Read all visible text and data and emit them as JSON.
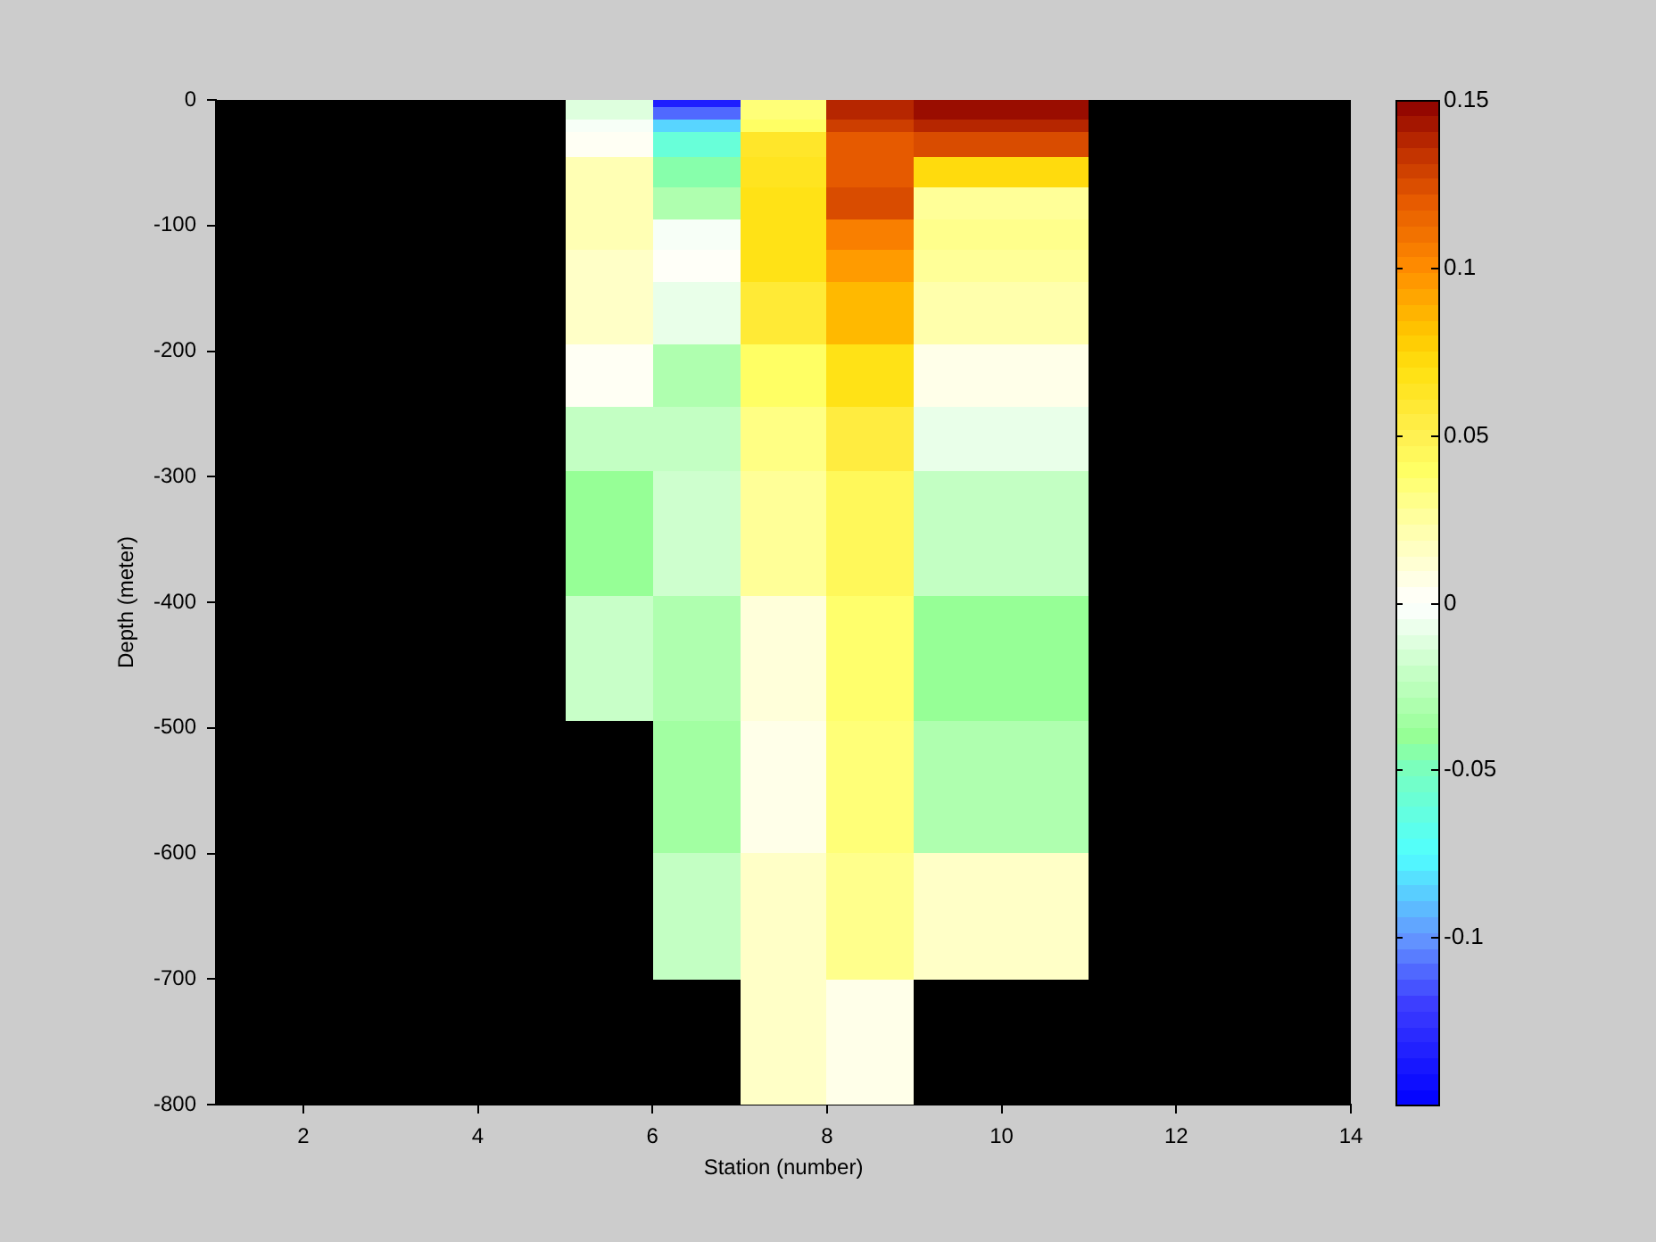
{
  "chart_data": {
    "type": "heatmap",
    "xlabel": "Station (number)",
    "ylabel": "Depth (meter)",
    "xlim": [
      1,
      14
    ],
    "xticks": [
      2,
      4,
      6,
      8,
      10,
      12,
      14
    ],
    "ylim": [
      -800,
      0
    ],
    "yticks": [
      0,
      -100,
      -200,
      -300,
      -400,
      -500,
      -600,
      -700,
      -800
    ],
    "clim": [
      -0.15,
      0.15
    ],
    "cticks": [
      -0.1,
      -0.05,
      0,
      0.05,
      0.1,
      0.15
    ],
    "x": [
      5.5,
      6.5,
      7.5,
      8.5,
      9.5,
      10.5
    ],
    "cells": [
      [
        -0.012,
        -0.135,
        0.035,
        0.138,
        0.146,
        0.146
      ],
      [
        -0.012,
        -0.11,
        0.035,
        0.138,
        0.146,
        0.146
      ],
      [
        -0.012,
        -0.11,
        0.035,
        0.138,
        0.146,
        0.146
      ],
      [
        -0.003,
        -0.085,
        0.04,
        0.13,
        0.138,
        0.138
      ],
      [
        -0.003,
        -0.085,
        0.04,
        0.13,
        0.138,
        0.138
      ],
      [
        0.003,
        -0.06,
        0.062,
        0.12,
        0.125,
        0.125
      ],
      [
        0.003,
        -0.06,
        0.062,
        0.12,
        0.125,
        0.125
      ],
      [
        0.003,
        -0.06,
        0.062,
        0.12,
        0.125,
        0.125
      ],
      [
        0.003,
        -0.06,
        0.062,
        0.12,
        0.125,
        0.125
      ],
      [
        0.02,
        -0.045,
        0.065,
        0.12,
        0.072,
        0.072
      ],
      [
        0.02,
        -0.045,
        0.065,
        0.12,
        0.072,
        0.072
      ],
      [
        0.02,
        -0.045,
        0.065,
        0.12,
        0.072,
        0.072
      ],
      [
        0.02,
        -0.045,
        0.065,
        0.12,
        0.072,
        0.072
      ],
      [
        0.02,
        -0.045,
        0.065,
        0.12,
        0.072,
        0.072
      ],
      [
        0.02,
        -0.03,
        0.068,
        0.125,
        0.027,
        0.027
      ],
      [
        0.02,
        -0.03,
        0.068,
        0.125,
        0.027,
        0.027
      ],
      [
        0.02,
        -0.03,
        0.068,
        0.125,
        0.027,
        0.027
      ],
      [
        0.02,
        -0.03,
        0.068,
        0.125,
        0.027,
        0.027
      ],
      [
        0.02,
        -0.03,
        0.068,
        0.125,
        0.027,
        0.027
      ],
      [
        0.02,
        -0.003,
        0.068,
        0.105,
        0.03,
        0.03
      ],
      [
        0.02,
        -0.003,
        0.068,
        0.105,
        0.03,
        0.03
      ],
      [
        0.02,
        -0.003,
        0.068,
        0.105,
        0.03,
        0.03
      ],
      [
        0.02,
        -0.003,
        0.068,
        0.105,
        0.03,
        0.03
      ],
      [
        0.02,
        -0.003,
        0.068,
        0.105,
        0.03,
        0.03
      ],
      [
        0.015,
        0.002,
        0.068,
        0.095,
        0.027,
        0.027
      ],
      [
        0.015,
        0.002,
        0.068,
        0.095,
        0.027,
        0.027
      ],
      [
        0.015,
        0.002,
        0.068,
        0.095,
        0.027,
        0.027
      ],
      [
        0.015,
        0.002,
        0.068,
        0.095,
        0.027,
        0.027
      ],
      [
        0.015,
        0.002,
        0.068,
        0.095,
        0.027,
        0.027
      ],
      [
        0.015,
        -0.008,
        0.058,
        0.085,
        0.022,
        0.022
      ],
      [
        0.015,
        -0.008,
        0.058,
        0.085,
        0.022,
        0.022
      ],
      [
        0.015,
        -0.008,
        0.058,
        0.085,
        0.022,
        0.022
      ],
      [
        0.015,
        -0.008,
        0.058,
        0.085,
        0.022,
        0.022
      ],
      [
        0.015,
        -0.008,
        0.058,
        0.085,
        0.022,
        0.022
      ],
      [
        0.015,
        -0.008,
        0.058,
        0.085,
        0.022,
        0.022
      ],
      [
        0.015,
        -0.008,
        0.058,
        0.085,
        0.022,
        0.022
      ],
      [
        0.015,
        -0.008,
        0.058,
        0.085,
        0.022,
        0.022
      ],
      [
        0.015,
        -0.008,
        0.058,
        0.085,
        0.022,
        0.022
      ],
      [
        0.015,
        -0.008,
        0.058,
        0.085,
        0.022,
        0.022
      ],
      [
        0.003,
        -0.03,
        0.04,
        0.068,
        0.006,
        0.006
      ],
      [
        0.003,
        -0.03,
        0.04,
        0.068,
        0.006,
        0.006
      ],
      [
        0.003,
        -0.03,
        0.04,
        0.068,
        0.006,
        0.006
      ],
      [
        0.003,
        -0.03,
        0.04,
        0.068,
        0.006,
        0.006
      ],
      [
        0.003,
        -0.03,
        0.04,
        0.068,
        0.006,
        0.006
      ],
      [
        0.003,
        -0.03,
        0.04,
        0.068,
        0.006,
        0.006
      ],
      [
        0.003,
        -0.03,
        0.04,
        0.068,
        0.006,
        0.006
      ],
      [
        0.003,
        -0.03,
        0.04,
        0.068,
        0.006,
        0.006
      ],
      [
        0.003,
        -0.03,
        0.04,
        0.068,
        0.006,
        0.006
      ],
      [
        0.003,
        -0.03,
        0.04,
        0.068,
        0.006,
        0.006
      ],
      [
        -0.022,
        -0.022,
        0.032,
        0.055,
        -0.008,
        -0.008
      ],
      [
        -0.022,
        -0.022,
        0.032,
        0.055,
        -0.008,
        -0.008
      ],
      [
        -0.022,
        -0.022,
        0.032,
        0.055,
        -0.008,
        -0.008
      ],
      [
        -0.022,
        -0.022,
        0.032,
        0.055,
        -0.008,
        -0.008
      ],
      [
        -0.022,
        -0.022,
        0.032,
        0.055,
        -0.008,
        -0.008
      ],
      [
        -0.022,
        -0.022,
        0.032,
        0.055,
        -0.008,
        -0.008
      ],
      [
        -0.022,
        -0.022,
        0.032,
        0.055,
        -0.008,
        -0.008
      ],
      [
        -0.022,
        -0.022,
        0.032,
        0.055,
        -0.008,
        -0.008
      ],
      [
        -0.022,
        -0.022,
        0.032,
        0.055,
        -0.008,
        -0.008
      ],
      [
        -0.022,
        -0.022,
        0.032,
        0.055,
        -0.008,
        -0.008
      ],
      [
        -0.04,
        -0.018,
        0.027,
        0.045,
        -0.022,
        -0.022
      ],
      [
        -0.04,
        -0.018,
        0.027,
        0.045,
        -0.022,
        -0.022
      ],
      [
        -0.04,
        -0.018,
        0.027,
        0.045,
        -0.022,
        -0.022
      ],
      [
        -0.04,
        -0.018,
        0.027,
        0.045,
        -0.022,
        -0.022
      ],
      [
        -0.04,
        -0.018,
        0.027,
        0.045,
        -0.022,
        -0.022
      ],
      [
        -0.04,
        -0.018,
        0.027,
        0.045,
        -0.022,
        -0.022
      ],
      [
        -0.04,
        -0.018,
        0.027,
        0.045,
        -0.022,
        -0.022
      ],
      [
        -0.04,
        -0.018,
        0.027,
        0.045,
        -0.022,
        -0.022
      ],
      [
        -0.04,
        -0.018,
        0.027,
        0.045,
        -0.022,
        -0.022
      ],
      [
        -0.04,
        -0.018,
        0.027,
        0.045,
        -0.022,
        -0.022
      ],
      [
        -0.04,
        -0.018,
        0.027,
        0.045,
        -0.022,
        -0.022
      ],
      [
        -0.04,
        -0.018,
        0.027,
        0.045,
        -0.022,
        -0.022
      ],
      [
        -0.04,
        -0.018,
        0.027,
        0.045,
        -0.022,
        -0.022
      ],
      [
        -0.04,
        -0.018,
        0.027,
        0.045,
        -0.022,
        -0.022
      ],
      [
        -0.04,
        -0.018,
        0.027,
        0.045,
        -0.022,
        -0.022
      ],
      [
        -0.04,
        -0.018,
        0.027,
        0.045,
        -0.022,
        -0.022
      ],
      [
        -0.04,
        -0.018,
        0.027,
        0.045,
        -0.022,
        -0.022
      ],
      [
        -0.04,
        -0.018,
        0.027,
        0.045,
        -0.022,
        -0.022
      ],
      [
        -0.04,
        -0.018,
        0.027,
        0.045,
        -0.022,
        -0.022
      ],
      [
        -0.04,
        -0.018,
        0.027,
        0.045,
        -0.022,
        -0.022
      ],
      [
        -0.02,
        -0.03,
        0.01,
        0.038,
        -0.04,
        -0.04
      ],
      [
        -0.02,
        -0.03,
        0.01,
        0.038,
        -0.04,
        -0.04
      ],
      [
        -0.02,
        -0.03,
        0.01,
        0.038,
        -0.04,
        -0.04
      ],
      [
        -0.02,
        -0.03,
        0.01,
        0.038,
        -0.04,
        -0.04
      ],
      [
        -0.02,
        -0.03,
        0.01,
        0.038,
        -0.04,
        -0.04
      ],
      [
        -0.02,
        -0.03,
        0.01,
        0.038,
        -0.04,
        -0.04
      ],
      [
        -0.02,
        -0.03,
        0.01,
        0.038,
        -0.04,
        -0.04
      ],
      [
        -0.02,
        -0.03,
        0.01,
        0.038,
        -0.04,
        -0.04
      ],
      [
        -0.02,
        -0.03,
        0.01,
        0.038,
        -0.04,
        -0.04
      ],
      [
        -0.02,
        -0.03,
        0.01,
        0.038,
        -0.04,
        -0.04
      ],
      [
        -0.02,
        -0.03,
        0.01,
        0.038,
        -0.04,
        -0.04
      ],
      [
        -0.02,
        -0.03,
        0.01,
        0.038,
        -0.04,
        -0.04
      ],
      [
        -0.02,
        -0.03,
        0.01,
        0.038,
        -0.04,
        -0.04
      ],
      [
        -0.02,
        -0.03,
        0.01,
        0.038,
        -0.04,
        -0.04
      ],
      [
        -0.02,
        -0.03,
        0.01,
        0.038,
        -0.04,
        -0.04
      ],
      [
        -0.02,
        -0.03,
        0.01,
        0.038,
        -0.04,
        -0.04
      ],
      [
        -0.02,
        -0.03,
        0.01,
        0.038,
        -0.04,
        -0.04
      ],
      [
        -0.02,
        -0.03,
        0.01,
        0.038,
        -0.04,
        -0.04
      ],
      [
        -0.02,
        -0.03,
        0.01,
        0.038,
        -0.04,
        -0.04
      ],
      [
        -0.02,
        -0.03,
        0.01,
        0.038,
        -0.04,
        -0.04
      ],
      [
        null,
        -0.035,
        0.006,
        0.035,
        -0.03,
        -0.03
      ],
      [
        null,
        -0.035,
        0.006,
        0.035,
        -0.03,
        -0.03
      ],
      [
        null,
        -0.035,
        0.006,
        0.035,
        -0.03,
        -0.03
      ],
      [
        null,
        -0.035,
        0.006,
        0.035,
        -0.03,
        -0.03
      ],
      [
        null,
        -0.035,
        0.006,
        0.035,
        -0.03,
        -0.03
      ],
      [
        null,
        -0.035,
        0.006,
        0.035,
        -0.03,
        -0.03
      ],
      [
        null,
        -0.035,
        0.006,
        0.035,
        -0.03,
        -0.03
      ],
      [
        null,
        -0.035,
        0.006,
        0.035,
        -0.03,
        -0.03
      ],
      [
        null,
        -0.035,
        0.006,
        0.035,
        -0.03,
        -0.03
      ],
      [
        null,
        -0.035,
        0.006,
        0.035,
        -0.03,
        -0.03
      ],
      [
        null,
        -0.035,
        0.006,
        0.035,
        -0.03,
        -0.03
      ],
      [
        null,
        -0.035,
        0.006,
        0.035,
        -0.03,
        -0.03
      ],
      [
        null,
        -0.035,
        0.006,
        0.035,
        -0.03,
        -0.03
      ],
      [
        null,
        -0.035,
        0.006,
        0.035,
        -0.03,
        -0.03
      ],
      [
        null,
        -0.035,
        0.006,
        0.035,
        -0.03,
        -0.03
      ],
      [
        null,
        -0.035,
        0.006,
        0.035,
        -0.03,
        -0.03
      ],
      [
        null,
        -0.035,
        0.006,
        0.035,
        -0.03,
        -0.03
      ],
      [
        null,
        -0.035,
        0.006,
        0.035,
        -0.03,
        -0.03
      ],
      [
        null,
        -0.035,
        0.006,
        0.035,
        -0.03,
        -0.03
      ],
      [
        null,
        -0.035,
        0.006,
        0.035,
        -0.03,
        -0.03
      ],
      [
        null,
        -0.035,
        0.006,
        0.035,
        -0.03,
        -0.03
      ],
      [
        null,
        -0.022,
        0.015,
        0.03,
        0.015,
        0.015
      ],
      [
        null,
        -0.022,
        0.015,
        0.03,
        0.015,
        0.015
      ],
      [
        null,
        -0.022,
        0.015,
        0.03,
        0.015,
        0.015
      ],
      [
        null,
        -0.022,
        0.015,
        0.03,
        0.015,
        0.015
      ],
      [
        null,
        -0.022,
        0.015,
        0.03,
        0.015,
        0.015
      ],
      [
        null,
        -0.022,
        0.015,
        0.03,
        0.015,
        0.015
      ],
      [
        null,
        -0.022,
        0.015,
        0.03,
        0.015,
        0.015
      ],
      [
        null,
        -0.022,
        0.015,
        0.03,
        0.015,
        0.015
      ],
      [
        null,
        -0.022,
        0.015,
        0.03,
        0.015,
        0.015
      ],
      [
        null,
        -0.022,
        0.015,
        0.03,
        0.015,
        0.015
      ],
      [
        null,
        -0.022,
        0.015,
        0.03,
        0.015,
        0.015
      ],
      [
        null,
        -0.022,
        0.015,
        0.03,
        0.015,
        0.015
      ],
      [
        null,
        -0.022,
        0.015,
        0.03,
        0.015,
        0.015
      ],
      [
        null,
        -0.022,
        0.015,
        0.03,
        0.015,
        0.015
      ],
      [
        null,
        -0.022,
        0.015,
        0.03,
        0.015,
        0.015
      ],
      [
        null,
        -0.022,
        0.015,
        0.03,
        0.015,
        0.015
      ],
      [
        null,
        -0.022,
        0.015,
        0.03,
        0.015,
        0.015
      ],
      [
        null,
        -0.022,
        0.015,
        0.03,
        0.015,
        0.015
      ],
      [
        null,
        -0.022,
        0.015,
        0.03,
        0.015,
        0.015
      ],
      [
        null,
        -0.022,
        0.015,
        0.03,
        0.015,
        0.015
      ],
      [
        null,
        null,
        0.015,
        0.006,
        null,
        null
      ],
      [
        null,
        null,
        0.015,
        0.006,
        null,
        null
      ],
      [
        null,
        null,
        0.015,
        0.006,
        null,
        null
      ],
      [
        null,
        null,
        0.015,
        0.006,
        null,
        null
      ],
      [
        null,
        null,
        0.015,
        0.006,
        null,
        null
      ],
      [
        null,
        null,
        0.015,
        0.006,
        null,
        null
      ],
      [
        null,
        null,
        0.015,
        0.006,
        null,
        null
      ],
      [
        null,
        null,
        0.015,
        0.006,
        null,
        null
      ],
      [
        null,
        null,
        0.015,
        0.006,
        null,
        null
      ],
      [
        null,
        null,
        0.015,
        0.006,
        null,
        null
      ],
      [
        null,
        null,
        0.015,
        0.006,
        null,
        null
      ],
      [
        null,
        null,
        0.015,
        0.006,
        null,
        null
      ],
      [
        null,
        null,
        0.015,
        0.006,
        null,
        null
      ],
      [
        null,
        null,
        0.015,
        0.006,
        null,
        null
      ],
      [
        null,
        null,
        0.015,
        0.006,
        null,
        null
      ],
      [
        null,
        null,
        0.015,
        0.006,
        null,
        null
      ],
      [
        null,
        null,
        0.015,
        0.006,
        null,
        null
      ],
      [
        null,
        null,
        0.015,
        0.006,
        null,
        null
      ],
      [
        null,
        null,
        0.015,
        0.006,
        null,
        null
      ],
      [
        null,
        null,
        0.015,
        0.006,
        null,
        null
      ]
    ]
  }
}
